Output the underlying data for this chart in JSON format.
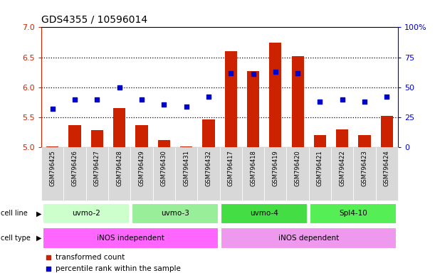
{
  "title": "GDS4355 / 10596014",
  "samples": [
    "GSM796425",
    "GSM796426",
    "GSM796427",
    "GSM796428",
    "GSM796429",
    "GSM796430",
    "GSM796431",
    "GSM796432",
    "GSM796417",
    "GSM796418",
    "GSM796419",
    "GSM796420",
    "GSM796421",
    "GSM796422",
    "GSM796423",
    "GSM796424"
  ],
  "transformed_count": [
    5.02,
    5.37,
    5.29,
    5.65,
    5.37,
    5.12,
    5.02,
    5.47,
    6.6,
    6.27,
    6.75,
    6.52,
    5.2,
    5.3,
    5.2,
    5.53
  ],
  "percentile_rank": [
    32,
    40,
    40,
    50,
    40,
    36,
    34,
    42,
    62,
    61,
    63,
    62,
    38,
    40,
    38,
    42
  ],
  "cell_lines": [
    {
      "label": "uvmo-2",
      "start": 0,
      "end": 3,
      "color": "#ccffcc"
    },
    {
      "label": "uvmo-3",
      "start": 4,
      "end": 7,
      "color": "#99ee99"
    },
    {
      "label": "uvmo-4",
      "start": 8,
      "end": 11,
      "color": "#44dd44"
    },
    {
      "label": "Spl4-10",
      "start": 12,
      "end": 15,
      "color": "#55ee55"
    }
  ],
  "cell_types": [
    {
      "label": "iNOS independent",
      "start": 0,
      "end": 7,
      "color": "#ff66ff"
    },
    {
      "label": "iNOS dependent",
      "start": 8,
      "end": 15,
      "color": "#ee99ee"
    }
  ],
  "ylim_left": [
    5.0,
    7.0
  ],
  "ylim_right": [
    0,
    100
  ],
  "yticks_left": [
    5.0,
    5.5,
    6.0,
    6.5,
    7.0
  ],
  "yticks_right": [
    0,
    25,
    50,
    75,
    100
  ],
  "grid_yticks": [
    5.5,
    6.0,
    6.5
  ],
  "bar_color": "#cc2200",
  "dot_color": "#0000cc",
  "left_tick_color": "#cc2200",
  "right_tick_color": "#0000cc",
  "legend_bar_label": "transformed count",
  "legend_dot_label": "percentile rank within the sample",
  "cell_line_label": "cell line",
  "cell_type_label": "cell type",
  "sample_box_color": "#d8d8d8",
  "title_fontsize": 10,
  "bar_width": 0.55
}
